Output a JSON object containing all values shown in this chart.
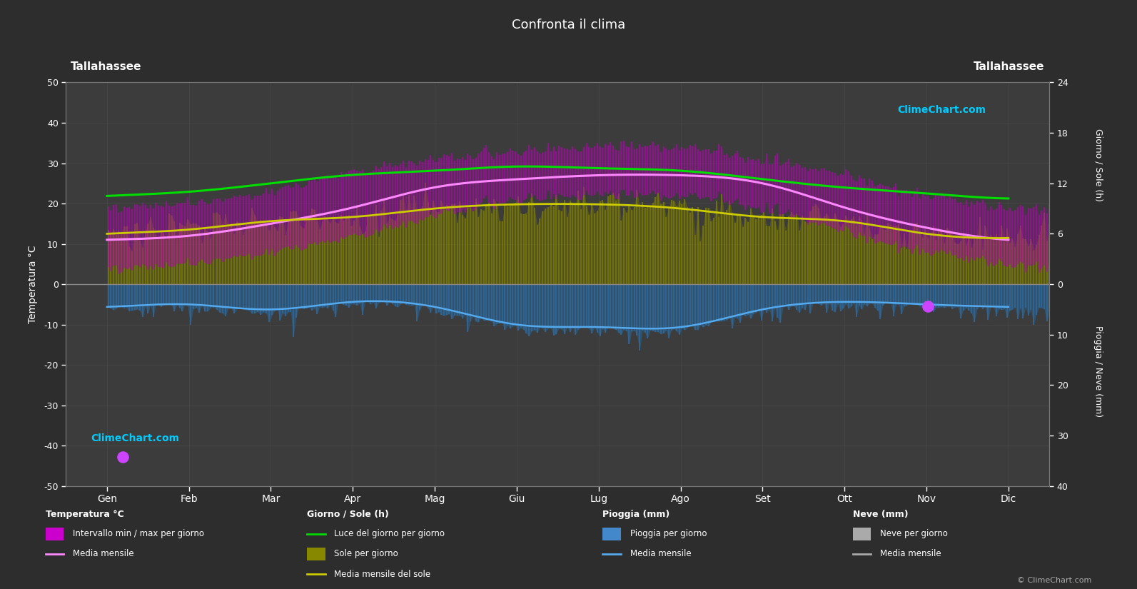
{
  "title": "Confronta il clima",
  "city_left": "Tallahassee",
  "city_right": "Tallahassee",
  "background_color": "#2d2d2d",
  "plot_bg_color": "#3c3c3c",
  "months": [
    "Gen",
    "Feb",
    "Mar",
    "Apr",
    "Mag",
    "Giu",
    "Lug",
    "Ago",
    "Set",
    "Ott",
    "Nov",
    "Dic"
  ],
  "ylim_temp": [
    -50,
    50
  ],
  "temp_min_monthly": [
    5,
    6,
    9,
    13,
    18,
    22,
    23,
    23,
    20,
    14,
    9,
    6
  ],
  "temp_max_monthly": [
    18,
    19,
    22,
    27,
    30,
    32,
    33,
    33,
    30,
    26,
    21,
    18
  ],
  "temp_mean_monthly": [
    11,
    12,
    15,
    19,
    24,
    26,
    27,
    27,
    25,
    19,
    14,
    11
  ],
  "sun_hours_monthly": [
    10.5,
    11.0,
    12.0,
    13.0,
    13.5,
    14.0,
    13.8,
    13.5,
    12.5,
    11.5,
    10.8,
    10.2
  ],
  "sunshine_daily_monthly": [
    6.0,
    6.5,
    7.5,
    8.0,
    9.0,
    9.5,
    9.5,
    9.0,
    8.0,
    7.5,
    6.0,
    5.5
  ],
  "rain_daily_monthly": [
    4.5,
    4.0,
    5.0,
    3.5,
    4.5,
    8.0,
    8.5,
    8.5,
    5.0,
    3.5,
    4.0,
    4.5
  ],
  "grid_color": "#555555",
  "sun_line_color": "#00dd00",
  "sunshine_mean_color": "#cccc00",
  "temp_mean_line_color": "#ff88ff",
  "rain_mean_color": "#55aaee",
  "logo_color": "#00ccff",
  "watermark": "© ClimeChart.com",
  "ylabel_left": "Temperatura °C",
  "ylabel_right_sun": "Giorno / Sole (h)",
  "ylabel_right_rain": "Pioggia / Neve (mm)",
  "sun_ticks": [
    0,
    6,
    12,
    18,
    24
  ],
  "rain_ticks": [
    0,
    10,
    20,
    30,
    40
  ],
  "legend_col1_title": "Temperatura °C",
  "legend_col2_title": "Giorno / Sole (h)",
  "legend_col3_title": "Pioggia (mm)",
  "legend_col4_title": "Neve (mm)",
  "legend_col1_items": [
    "Intervallo min / max per giorno",
    "Media mensile"
  ],
  "legend_col2_items": [
    "Luce del giorno per giorno",
    "Sole per giorno",
    "Media mensile del sole"
  ],
  "legend_col3_items": [
    "Pioggia per giorno",
    "Media mensile"
  ],
  "legend_col4_items": [
    "Neve per giorno",
    "Media mensile"
  ]
}
